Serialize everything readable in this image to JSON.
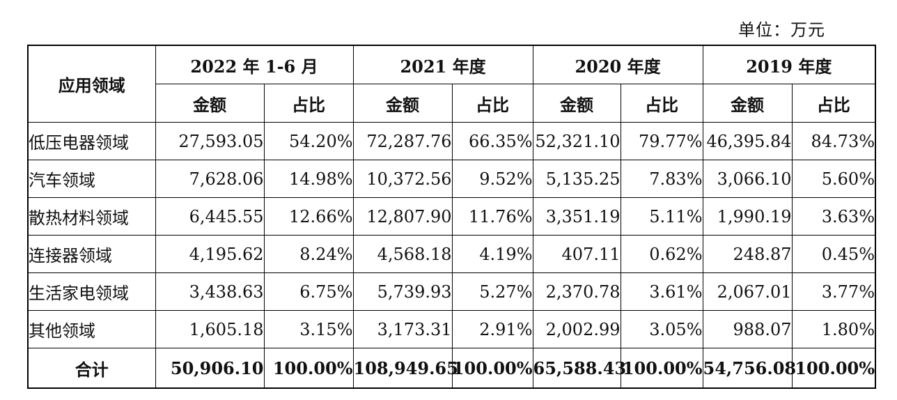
{
  "unit_text": "单位：万元",
  "header": {
    "field": "应用领域",
    "periods": [
      "2022 年 1-6 月",
      "2021 年度",
      "2020 年度",
      "2019 年度"
    ],
    "amount": "金额",
    "ratio": "占比"
  },
  "rows": [
    {
      "label": "低压电器领域",
      "cells": [
        "27,593.05",
        "54.20%",
        "72,287.76",
        "66.35%",
        "52,321.10",
        "79.77%",
        "46,395.84",
        "84.73%"
      ]
    },
    {
      "label": "汽车领域",
      "cells": [
        "7,628.06",
        "14.98%",
        "10,372.56",
        "9.52%",
        "5,135.25",
        "7.83%",
        "3,066.10",
        "5.60%"
      ]
    },
    {
      "label": "散热材料领域",
      "cells": [
        "6,445.55",
        "12.66%",
        "12,807.90",
        "11.76%",
        "3,351.19",
        "5.11%",
        "1,990.19",
        "3.63%"
      ]
    },
    {
      "label": "连接器领域",
      "cells": [
        "4,195.62",
        "8.24%",
        "4,568.18",
        "4.19%",
        "407.11",
        "0.62%",
        "248.87",
        "0.45%"
      ]
    },
    {
      "label": "生活家电领域",
      "cells": [
        "3,438.63",
        "6.75%",
        "5,739.93",
        "5.27%",
        "2,370.78",
        "3.61%",
        "2,067.01",
        "3.77%"
      ]
    },
    {
      "label": "其他领域",
      "cells": [
        "1,605.18",
        "3.15%",
        "3,173.31",
        "2.91%",
        "2,002.99",
        "3.05%",
        "988.07",
        "1.80%"
      ]
    }
  ],
  "total": {
    "label": "合计",
    "cells": [
      "50,906.10",
      "100.00%",
      "108,949.65",
      "100.00%",
      "65,588.43",
      "100.00%",
      "54,756.08",
      "100.00%"
    ]
  }
}
